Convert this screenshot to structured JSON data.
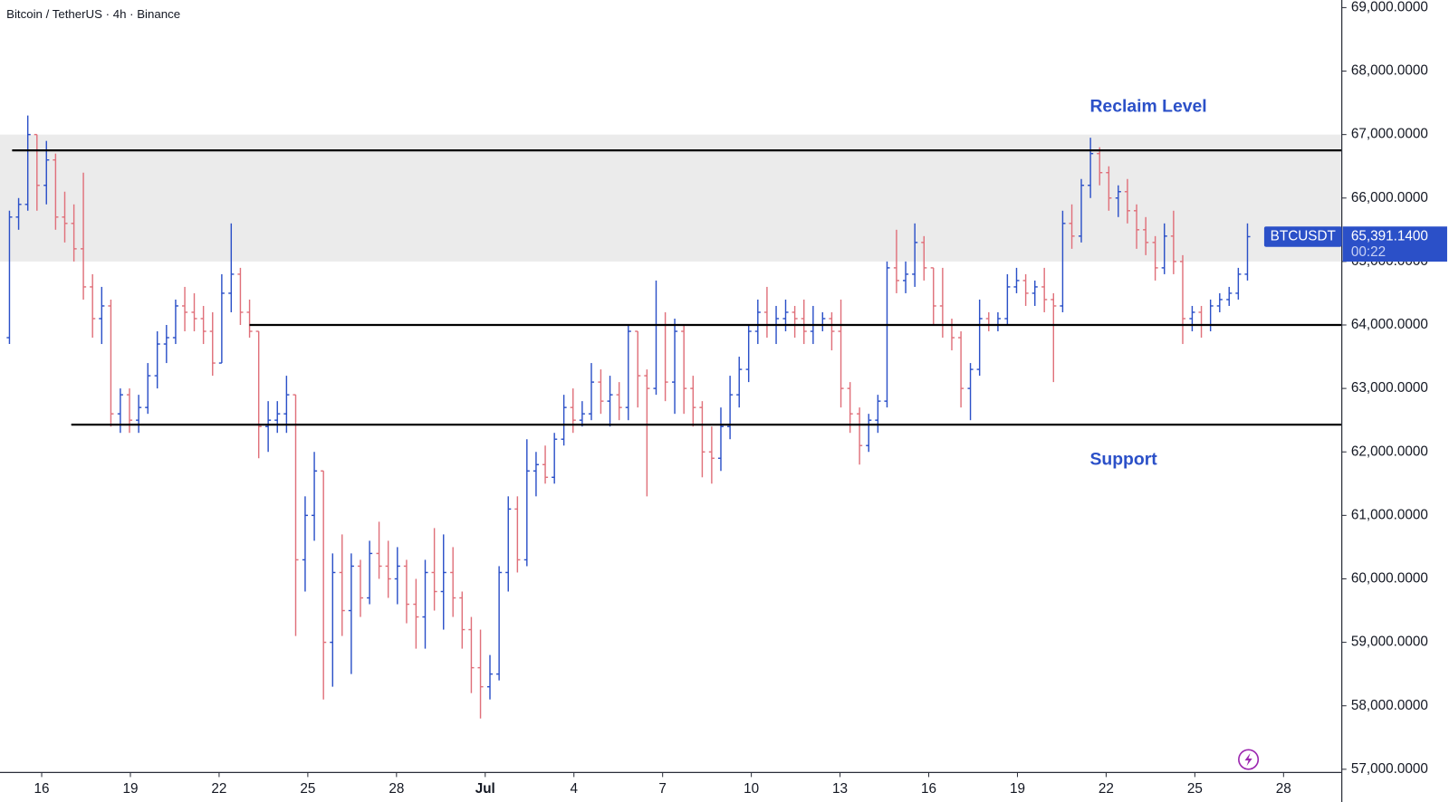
{
  "chart_data": {
    "type": "ohlc",
    "title": "Bitcoin / TetherUS · 4h · Binance",
    "up_color": "#2b50c8",
    "down_color": "#e0707a",
    "level_color": "#000000",
    "zone_color": "#ebebeb",
    "xlim": [
      -1.41,
      43.97
    ],
    "ylim": [
      56950,
      69120
    ],
    "xticks": [
      {
        "value": 0,
        "label": "16"
      },
      {
        "value": 3,
        "label": "19"
      },
      {
        "value": 6,
        "label": "22"
      },
      {
        "value": 9,
        "label": "25"
      },
      {
        "value": 12,
        "label": "28"
      },
      {
        "value": 15,
        "label": "Jul"
      },
      {
        "value": 18,
        "label": "4"
      },
      {
        "value": 21,
        "label": "7"
      },
      {
        "value": 24,
        "label": "10"
      },
      {
        "value": 27,
        "label": "13"
      },
      {
        "value": 30,
        "label": "16"
      },
      {
        "value": 33,
        "label": "19"
      },
      {
        "value": 36,
        "label": "22"
      },
      {
        "value": 39,
        "label": "25"
      },
      {
        "value": 42,
        "label": "28"
      }
    ],
    "yticks": [
      {
        "value": 57000,
        "label": "57,000.0000"
      },
      {
        "value": 58000,
        "label": "58,000.0000"
      },
      {
        "value": 59000,
        "label": "59,000.0000"
      },
      {
        "value": 60000,
        "label": "60,000.0000"
      },
      {
        "value": 61000,
        "label": "61,000.0000"
      },
      {
        "value": 62000,
        "label": "62,000.0000"
      },
      {
        "value": 63000,
        "label": "63,000.0000"
      },
      {
        "value": 64000,
        "label": "64,000.0000"
      },
      {
        "value": 65000,
        "label": "65,000.0000"
      },
      {
        "value": 66000,
        "label": "66,000.0000"
      },
      {
        "value": 67000,
        "label": "67,000.0000"
      },
      {
        "value": 68000,
        "label": "68,000.0000"
      },
      {
        "value": 69000,
        "label": "69,000.0000"
      }
    ],
    "x": [
      -1.09,
      -0.78,
      -0.47,
      -0.16,
      0.16,
      0.47,
      0.78,
      1.09,
      1.41,
      1.72,
      2.03,
      2.34,
      2.66,
      2.97,
      3.28,
      3.59,
      3.91,
      4.22,
      4.53,
      4.84,
      5.16,
      5.47,
      5.78,
      6.09,
      6.41,
      6.72,
      7.03,
      7.34,
      7.66,
      7.97,
      8.28,
      8.59,
      8.91,
      9.22,
      9.53,
      9.84,
      10.16,
      10.47,
      10.78,
      11.09,
      11.41,
      11.72,
      12.03,
      12.34,
      12.66,
      12.97,
      13.28,
      13.59,
      13.91,
      14.22,
      14.53,
      14.84,
      15.16,
      15.47,
      15.78,
      16.09,
      16.41,
      16.72,
      17.03,
      17.34,
      17.66,
      17.97,
      18.28,
      18.59,
      18.91,
      19.22,
      19.53,
      19.84,
      20.16,
      20.47,
      20.78,
      21.09,
      21.41,
      21.72,
      22.03,
      22.34,
      22.66,
      22.97,
      23.28,
      23.59,
      23.91,
      24.22,
      24.53,
      24.84,
      25.16,
      25.47,
      25.78,
      26.09,
      26.41,
      26.72,
      27.03,
      27.34,
      27.66,
      27.97,
      28.28,
      28.59,
      28.91,
      29.22,
      29.53,
      29.84,
      30.16,
      30.47,
      30.78,
      31.09,
      31.41,
      31.72,
      32.03,
      32.34,
      32.66,
      32.97,
      33.28,
      33.59,
      33.91,
      34.22,
      34.53,
      34.84,
      35.16,
      35.47,
      35.78,
      36.09,
      36.41,
      36.72,
      37.03,
      37.34,
      37.66,
      37.97,
      38.28,
      38.59,
      38.91,
      39.22,
      39.53,
      39.84,
      40.16,
      40.47,
      40.78
    ],
    "open": [
      63800,
      65700,
      65900,
      67000,
      66200,
      66600,
      65700,
      65600,
      65200,
      64600,
      64100,
      64300,
      62600,
      62900,
      62500,
      62700,
      63200,
      63700,
      63800,
      64300,
      64200,
      64100,
      63900,
      63400,
      64500,
      64800,
      64200,
      63900,
      62400,
      62500,
      62600,
      62900,
      60300,
      61000,
      61700,
      59000,
      60100,
      59500,
      60200,
      59700,
      60400,
      60200,
      60000,
      60200,
      59600,
      59400,
      60100,
      59800,
      60100,
      59700,
      59200,
      58600,
      58300,
      58500,
      60100,
      61100,
      60300,
      61700,
      61800,
      61600,
      62200,
      62700,
      62500,
      62600,
      63100,
      62800,
      62900,
      62700,
      63900,
      63200,
      63000,
      64000,
      63100,
      63900,
      63000,
      62700,
      62000,
      61900,
      62400,
      62900,
      63300,
      63900,
      64200,
      64000,
      64100,
      64200,
      64100,
      63900,
      64000,
      64100,
      63900,
      63000,
      62600,
      62100,
      62500,
      62800,
      64900,
      64700,
      64800,
      65300,
      64900,
      64300,
      64000,
      63800,
      63000,
      63300,
      64100,
      64000,
      64100,
      64600,
      64700,
      64500,
      64600,
      64400,
      64300,
      65600,
      65400,
      66200,
      66700,
      66400,
      66000,
      66100,
      65800,
      65500,
      65300,
      64900,
      65400,
      65000,
      64100,
      64200,
      64000,
      64300,
      64400,
      64500,
      64800
    ],
    "high": [
      65800,
      66000,
      67300,
      67000,
      66900,
      66700,
      66100,
      65900,
      66400,
      64800,
      64600,
      64400,
      63000,
      63000,
      62900,
      63400,
      63900,
      64000,
      64400,
      64600,
      64500,
      64300,
      64200,
      64800,
      65600,
      64900,
      64400,
      63900,
      62800,
      62800,
      63200,
      62900,
      61300,
      62000,
      61700,
      60400,
      60700,
      60400,
      60300,
      60600,
      60900,
      60600,
      60500,
      60300,
      60000,
      60300,
      60800,
      60700,
      60500,
      59800,
      59400,
      59200,
      58800,
      60200,
      61300,
      61300,
      62200,
      62000,
      62100,
      62300,
      62900,
      63000,
      62800,
      63400,
      63300,
      63200,
      63100,
      64000,
      63900,
      63300,
      64700,
      64200,
      64100,
      64000,
      63200,
      62800,
      62400,
      62700,
      63200,
      63500,
      64000,
      64400,
      64600,
      64300,
      64400,
      64300,
      64400,
      64300,
      64200,
      64200,
      64400,
      63100,
      62700,
      62600,
      62900,
      65000,
      65500,
      65000,
      65600,
      65400,
      64900,
      64900,
      64100,
      63900,
      63400,
      64400,
      64200,
      64200,
      64800,
      64900,
      64800,
      64700,
      64900,
      64500,
      65800,
      65900,
      66300,
      66950,
      66800,
      66500,
      66200,
      66300,
      65900,
      65700,
      65400,
      65600,
      65800,
      65100,
      64300,
      64300,
      64400,
      64500,
      64600,
      64900,
      65600
    ],
    "low": [
      63700,
      65500,
      65800,
      65800,
      65900,
      65500,
      65300,
      65000,
      64400,
      63800,
      63700,
      62400,
      62300,
      62300,
      62300,
      62600,
      63000,
      63400,
      63700,
      63900,
      63900,
      63700,
      63200,
      63400,
      64200,
      64000,
      63800,
      61900,
      62000,
      62300,
      62300,
      59100,
      59800,
      60600,
      58100,
      58300,
      59100,
      58500,
      59400,
      59600,
      60000,
      59700,
      59600,
      59300,
      58900,
      58900,
      59500,
      59200,
      59400,
      58900,
      58200,
      57800,
      58100,
      58400,
      59800,
      60100,
      60200,
      61300,
      61500,
      61500,
      62100,
      62300,
      62400,
      62500,
      62600,
      62400,
      62500,
      62500,
      62700,
      61300,
      62900,
      62800,
      62600,
      62600,
      62400,
      61600,
      61500,
      61700,
      62200,
      62700,
      63100,
      63700,
      63800,
      63700,
      63900,
      63800,
      63700,
      63700,
      63900,
      63600,
      62700,
      62300,
      61800,
      62000,
      62300,
      62700,
      64500,
      64500,
      64600,
      64700,
      64000,
      63800,
      63600,
      62700,
      62500,
      63200,
      63900,
      63900,
      64000,
      64500,
      64300,
      64300,
      64200,
      63100,
      64200,
      65200,
      65300,
      66000,
      66200,
      65800,
      65700,
      65600,
      65200,
      65100,
      64700,
      64800,
      64800,
      63700,
      63900,
      63800,
      63900,
      64200,
      64300,
      64400,
      64700
    ],
    "close": [
      65700,
      65900,
      67000,
      66200,
      66600,
      65700,
      65600,
      65200,
      64600,
      64100,
      64300,
      62600,
      62900,
      62500,
      62700,
      63200,
      63700,
      63800,
      64300,
      64200,
      64100,
      63900,
      63400,
      64500,
      64800,
      64200,
      63900,
      62400,
      62500,
      62600,
      62900,
      60300,
      61000,
      61700,
      59000,
      60100,
      59500,
      60200,
      59700,
      60400,
      60200,
      60000,
      60200,
      59600,
      59400,
      60100,
      59800,
      60100,
      59700,
      59200,
      58600,
      58300,
      58500,
      60100,
      61100,
      60300,
      61700,
      61800,
      61600,
      62200,
      62700,
      62500,
      62600,
      63100,
      62800,
      62900,
      62700,
      63900,
      63200,
      63000,
      64000,
      63100,
      63900,
      63000,
      62700,
      62000,
      61900,
      62400,
      62900,
      63300,
      63900,
      64200,
      64000,
      64100,
      64200,
      64100,
      63900,
      64000,
      64100,
      63900,
      63000,
      62600,
      62100,
      62500,
      62800,
      64900,
      64700,
      64800,
      65300,
      64900,
      64300,
      64000,
      63800,
      63000,
      63300,
      64100,
      64000,
      64100,
      64600,
      64700,
      64500,
      64600,
      64400,
      64300,
      65600,
      65400,
      66200,
      66700,
      66400,
      66000,
      66100,
      65800,
      65500,
      65300,
      64900,
      65400,
      65000,
      64100,
      64200,
      64000,
      64300,
      64400,
      64500,
      64800,
      65391.14
    ],
    "zone": [
      65000,
      67000
    ],
    "levels": [
      {
        "y": 66750,
        "x_start": -1.0
      },
      {
        "y": 64000,
        "x_start": 7.03
      },
      {
        "y": 62430,
        "x_start": 1.0
      }
    ],
    "annotations": [
      {
        "text": "Reclaim Level",
        "x": 35.45,
        "y": 67430
      },
      {
        "text": "Support",
        "x": 35.45,
        "y": 61873
      }
    ],
    "symbol": "BTCUSDT",
    "last_price": {
      "value": 65391.14,
      "label": "65,391.1400"
    },
    "countdown": "00:22"
  }
}
